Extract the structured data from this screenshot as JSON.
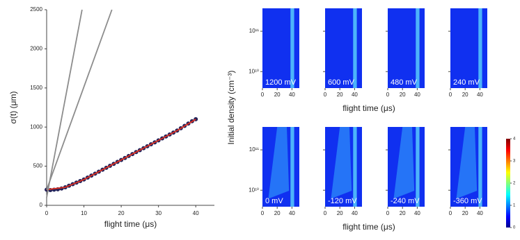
{
  "chart_data": [
    {
      "type": "line",
      "xlabel": "flight time (μs)",
      "ylabel": "σ(t) (μm)",
      "xlim": [
        0,
        45
      ],
      "xticks": [
        0,
        10,
        20,
        30,
        40
      ],
      "ylim": [
        0,
        2500
      ],
      "yticks": [
        0,
        500,
        1000,
        1500,
        2000,
        2500
      ],
      "series": [
        {
          "color": "#23235a",
          "marker": true,
          "x": [
            0,
            1,
            2,
            3,
            4,
            5,
            6,
            7,
            8,
            9,
            10,
            11,
            12,
            13,
            14,
            15,
            16,
            17,
            18,
            19,
            20,
            21,
            22,
            23,
            24,
            25,
            26,
            27,
            28,
            29,
            30,
            31,
            32,
            33,
            34,
            35,
            36,
            37,
            38,
            39,
            40
          ],
          "values": [
            200,
            195,
            200,
            205,
            215,
            230,
            250,
            270,
            290,
            310,
            330,
            355,
            380,
            405,
            430,
            455,
            480,
            505,
            530,
            555,
            580,
            605,
            630,
            655,
            680,
            705,
            730,
            755,
            780,
            805,
            830,
            855,
            880,
            905,
            930,
            955,
            985,
            1015,
            1045,
            1075,
            1100
          ]
        },
        {
          "color": "#e03020",
          "marker": false,
          "x": [
            0,
            5,
            10,
            15,
            20,
            25,
            30,
            35,
            40
          ],
          "values": [
            200,
            230,
            330,
            455,
            580,
            705,
            830,
            955,
            1100
          ]
        },
        {
          "color": "#8c8c8c",
          "marker": false,
          "x": [
            0,
            9.5
          ],
          "values": [
            100,
            2500
          ]
        },
        {
          "color": "#8c8c8c",
          "marker": false,
          "x": [
            0,
            17.5
          ],
          "values": [
            200,
            2500
          ]
        }
      ]
    },
    {
      "type": "heatmap",
      "ylabel": "Initial density (cm⁻³)",
      "xlim": [
        0,
        50
      ],
      "xticks": [
        0,
        20,
        40
      ],
      "ylim": [
        3900000000,
        370000000000
      ],
      "log_y": true,
      "yticks": [
        {
          "value": 10000000000,
          "label": "10¹⁰"
        },
        {
          "value": 100000000000,
          "label": "10¹¹"
        }
      ],
      "rows": [
        {
          "xlabel": "flight time (μs)",
          "panels": [
            "1200 mV",
            "600 mV",
            "480 mV",
            "240 mV"
          ]
        },
        {
          "xlabel": "flight time (μs)",
          "panels": [
            "0 mV",
            "-120 mV",
            "-240 mV",
            "-360 mV"
          ]
        }
      ],
      "colorbar": {
        "lim": [
          0,
          4
        ],
        "ticks": [
          0,
          1,
          2,
          3,
          4
        ]
      }
    }
  ]
}
